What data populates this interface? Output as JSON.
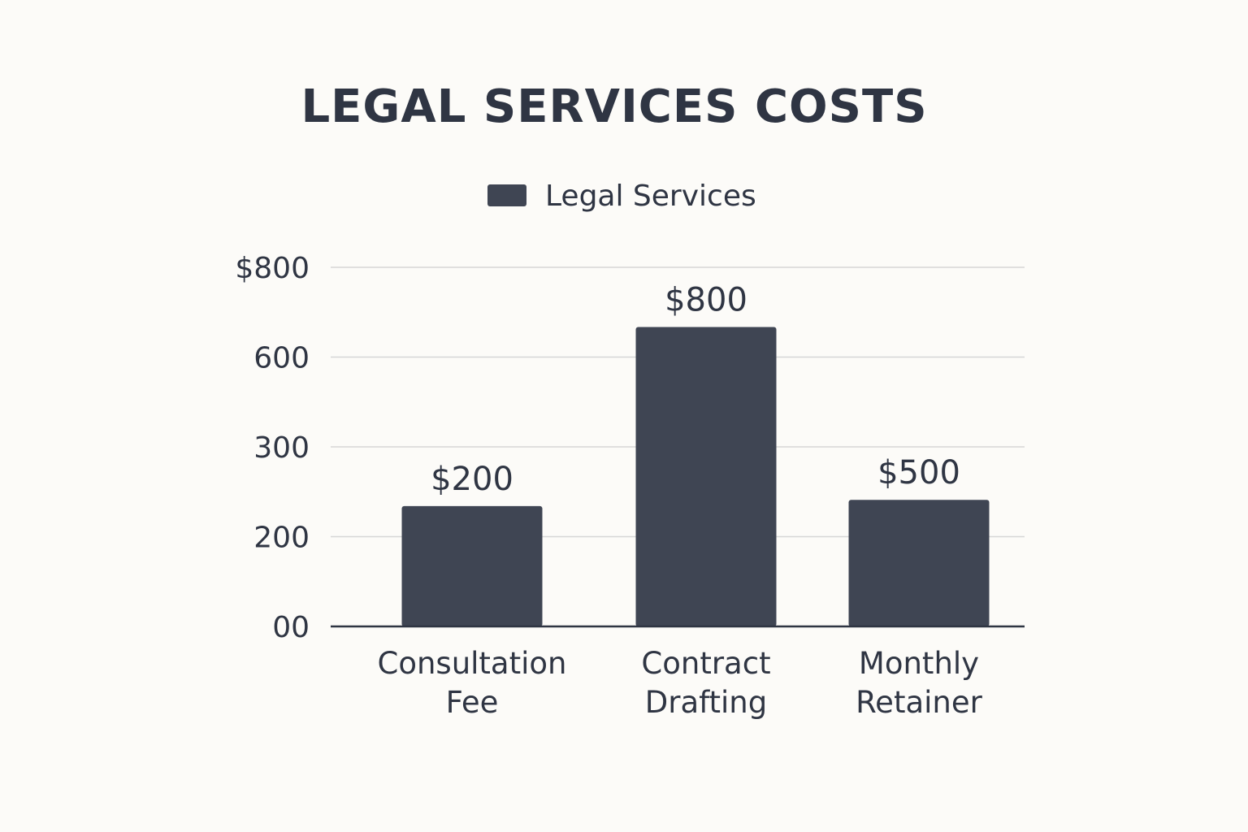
{
  "chart_data": {
    "type": "bar",
    "title": "LEGAL SERVICES COSTS",
    "xlabel": "",
    "ylabel": "",
    "categories": [
      [
        "Consultation",
        "Fee"
      ],
      [
        "Contract",
        "Drafting"
      ],
      [
        "Monthly",
        "Retainer"
      ]
    ],
    "series": [
      {
        "name": "Legal Services",
        "values": [
          200,
          800,
          500
        ],
        "data_labels": [
          "$200",
          "$800",
          "$500"
        ]
      }
    ],
    "y_tick_labels": [
      "$800",
      "600",
      "300",
      "200",
      "00"
    ],
    "y_tick_note": "tick labels printed as shown; bar heights sit on the printed tick scale",
    "y_tick_positions_data": [
      800,
      600,
      400,
      200,
      0
    ],
    "bar_display_levels": [
      268,
      667,
      282
    ],
    "ylim": [
      0,
      800
    ],
    "grid": true,
    "legend_position": "top-center",
    "colors": {
      "bar": "#3f4553",
      "text": "#2f3543",
      "grid": "#d6d6d6",
      "background": "#fcfbf8"
    }
  }
}
